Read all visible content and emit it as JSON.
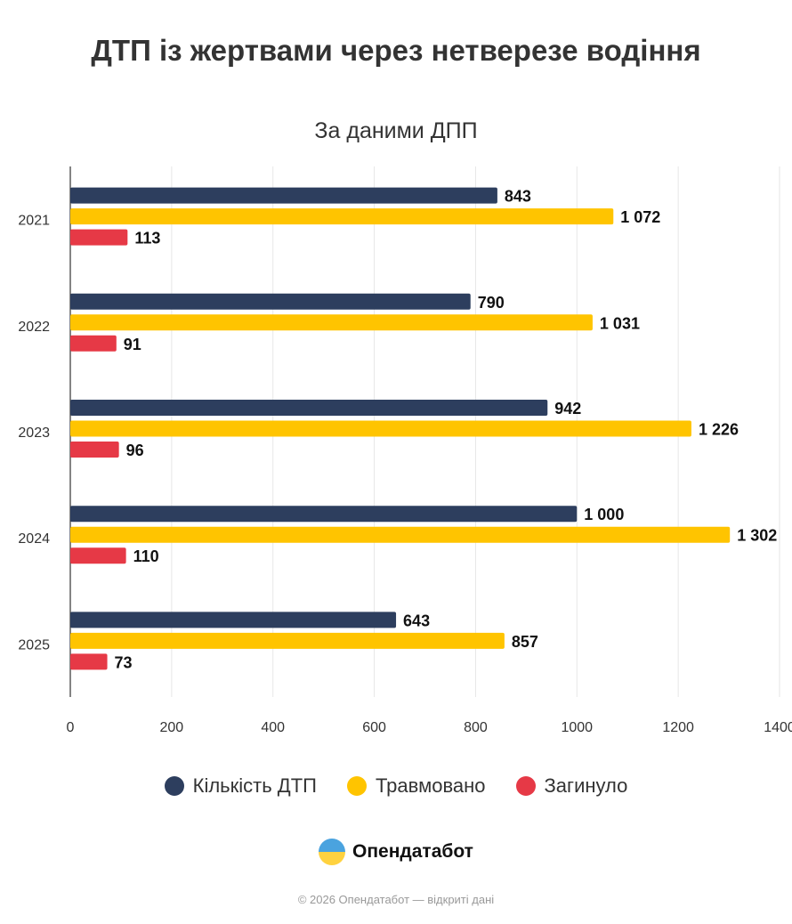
{
  "chart_data": {
    "type": "bar",
    "orientation": "horizontal",
    "title": "ДТП із жертвами через нетверезе водіння",
    "subtitle": "За даними ДПП",
    "categories": [
      "2021",
      "2022",
      "2023",
      "2024",
      "2025"
    ],
    "series": [
      {
        "name": "Кількість ДТП",
        "color": "#2d3e5e",
        "values": [
          843,
          790,
          942,
          1000,
          643
        ],
        "labels": [
          "843",
          "790",
          "942",
          "1 000",
          "643"
        ]
      },
      {
        "name": "Травмовано",
        "color": "#ffc400",
        "values": [
          1072,
          1031,
          1226,
          1302,
          857
        ],
        "labels": [
          "1 072",
          "1 031",
          "1 226",
          "1 302",
          "857"
        ]
      },
      {
        "name": "Загинуло",
        "color": "#e63946",
        "values": [
          113,
          91,
          96,
          110,
          73
        ],
        "labels": [
          "113",
          "91",
          "96",
          "110",
          "73"
        ]
      }
    ],
    "xlim": [
      0,
      1400
    ],
    "xticks": [
      "0",
      "200",
      "400",
      "600",
      "800",
      "1000",
      "1200",
      "1400"
    ],
    "grid": true,
    "legend": "bottom"
  },
  "brand": {
    "name": "Опендатабот",
    "copyright": "© 2026 Опендатабот — відкриті дані"
  }
}
